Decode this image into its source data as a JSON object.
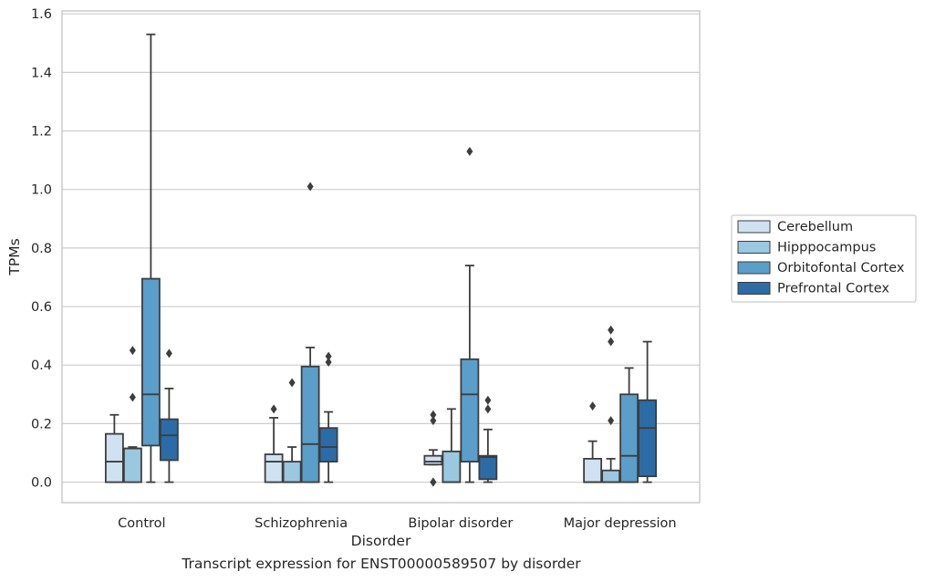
{
  "caption": "Transcript expression for ENST00000589507 by disorder",
  "chart_data": {
    "type": "box",
    "title": "",
    "xlabel": "Disorder",
    "ylabel": "TPMs",
    "ylim": [
      -0.07,
      1.61
    ],
    "yticks": [
      "0.0",
      "0.2",
      "0.4",
      "0.6",
      "0.8",
      "1.0",
      "1.2",
      "1.4",
      "1.6"
    ],
    "grid": "horizontal",
    "legend_position": "right",
    "categories": [
      "Control",
      "Schizophrenia",
      "Bipolar disorder",
      "Major depression"
    ],
    "series": [
      {
        "name": "Cerebellum",
        "color": "#d0e1f2",
        "boxes": [
          {
            "whislo": 0.0,
            "q1": 0.0,
            "med": 0.07,
            "q3": 0.165,
            "whishi": 0.23,
            "fliers": []
          },
          {
            "whislo": 0.0,
            "q1": 0.0,
            "med": 0.07,
            "q3": 0.095,
            "whishi": 0.22,
            "fliers": [
              0.25
            ]
          },
          {
            "whislo": 0.06,
            "q1": 0.06,
            "med": 0.07,
            "q3": 0.09,
            "whishi": 0.11,
            "fliers": [
              0.0,
              0.0,
              0.21,
              0.23
            ]
          },
          {
            "whislo": 0.0,
            "q1": 0.0,
            "med": 0.0,
            "q3": 0.08,
            "whishi": 0.14,
            "fliers": [
              0.26
            ]
          }
        ]
      },
      {
        "name": "Hipppocampus",
        "color": "#9ac8e0",
        "boxes": [
          {
            "whislo": 0.0,
            "q1": 0.0,
            "med": 0.115,
            "q3": 0.115,
            "whishi": 0.12,
            "fliers": [
              0.29,
              0.45
            ]
          },
          {
            "whislo": 0.0,
            "q1": 0.0,
            "med": 0.0,
            "q3": 0.07,
            "whishi": 0.12,
            "fliers": [
              0.34
            ]
          },
          {
            "whislo": 0.0,
            "q1": 0.0,
            "med": 0.0,
            "q3": 0.105,
            "whishi": 0.25,
            "fliers": []
          },
          {
            "whislo": 0.0,
            "q1": 0.0,
            "med": 0.0,
            "q3": 0.04,
            "whishi": 0.08,
            "fliers": [
              0.21,
              0.48,
              0.52
            ]
          }
        ]
      },
      {
        "name": "Orbitofontal Cortex",
        "color": "#5a9ec9",
        "boxes": [
          {
            "whislo": 0.0,
            "q1": 0.125,
            "med": 0.3,
            "q3": 0.695,
            "whishi": 1.53,
            "fliers": []
          },
          {
            "whislo": 0.0,
            "q1": 0.0,
            "med": 0.13,
            "q3": 0.395,
            "whishi": 0.46,
            "fliers": [
              1.01
            ]
          },
          {
            "whislo": 0.0,
            "q1": 0.07,
            "med": 0.3,
            "q3": 0.42,
            "whishi": 0.74,
            "fliers": [
              1.13
            ]
          },
          {
            "whislo": 0.0,
            "q1": 0.0,
            "med": 0.09,
            "q3": 0.3,
            "whishi": 0.39,
            "fliers": []
          }
        ]
      },
      {
        "name": "Prefrontal Cortex",
        "color": "#2b6ca6",
        "boxes": [
          {
            "whislo": 0.0,
            "q1": 0.075,
            "med": 0.16,
            "q3": 0.215,
            "whishi": 0.32,
            "fliers": [
              0.44
            ]
          },
          {
            "whislo": 0.0,
            "q1": 0.07,
            "med": 0.12,
            "q3": 0.185,
            "whishi": 0.24,
            "fliers": [
              0.41,
              0.43
            ]
          },
          {
            "whislo": 0.0,
            "q1": 0.01,
            "med": 0.085,
            "q3": 0.09,
            "whishi": 0.18,
            "fliers": [
              0.25,
              0.28
            ]
          },
          {
            "whislo": 0.0,
            "q1": 0.02,
            "med": 0.185,
            "q3": 0.28,
            "whishi": 0.48,
            "fliers": []
          }
        ]
      }
    ]
  }
}
